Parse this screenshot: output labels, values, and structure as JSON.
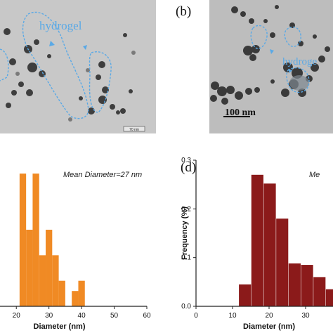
{
  "panels": {
    "a": {
      "annotation": "hydrogel",
      "scale_text": "70 nm"
    },
    "b": {
      "label": "(b)",
      "annotation": "hydroge",
      "scale_text": "100 nm"
    }
  },
  "colors": {
    "annotation": "#5aa9e6",
    "orange_bars": "#f08a24",
    "red_bars": "#8b1a1a",
    "tem_background_a": "#c9c9c9",
    "tem_background_b": "#bdbdbd"
  },
  "chart_data": [
    {
      "type": "bar",
      "panel_label": "",
      "annotation": "Mean Diameter=27 nm",
      "xlabel": "Diameter (nm)",
      "ylabel": "",
      "xlim": [
        15,
        60
      ],
      "ylim": [
        0,
        0.3
      ],
      "xticks": [
        20,
        30,
        40,
        50,
        60
      ],
      "bar_width": 2,
      "x": [
        22,
        24,
        26,
        28,
        30,
        32,
        34,
        38,
        40
      ],
      "values": [
        0.26,
        0.15,
        0.26,
        0.1,
        0.15,
        0.1,
        0.05,
        0.03,
        0.05
      ],
      "color": "#f08a24"
    },
    {
      "type": "bar",
      "panel_label": "(d)",
      "annotation": "Me",
      "xlabel": "Diameter (nm)",
      "ylabel": "Frequency (%)",
      "xlim": [
        0,
        40
      ],
      "ylim": [
        0,
        0.3
      ],
      "xticks": [
        0,
        10,
        20,
        30
      ],
      "yticks": [
        0.0,
        0.1,
        0.2,
        0.3
      ],
      "bar_width": 3.3,
      "x": [
        13.4,
        16.8,
        20.2,
        23.6,
        27,
        30.4,
        33.8,
        37.2
      ],
      "values": [
        0.045,
        0.27,
        0.252,
        0.18,
        0.088,
        0.085,
        0.06,
        0.035
      ],
      "color": "#8b1a1a"
    }
  ]
}
